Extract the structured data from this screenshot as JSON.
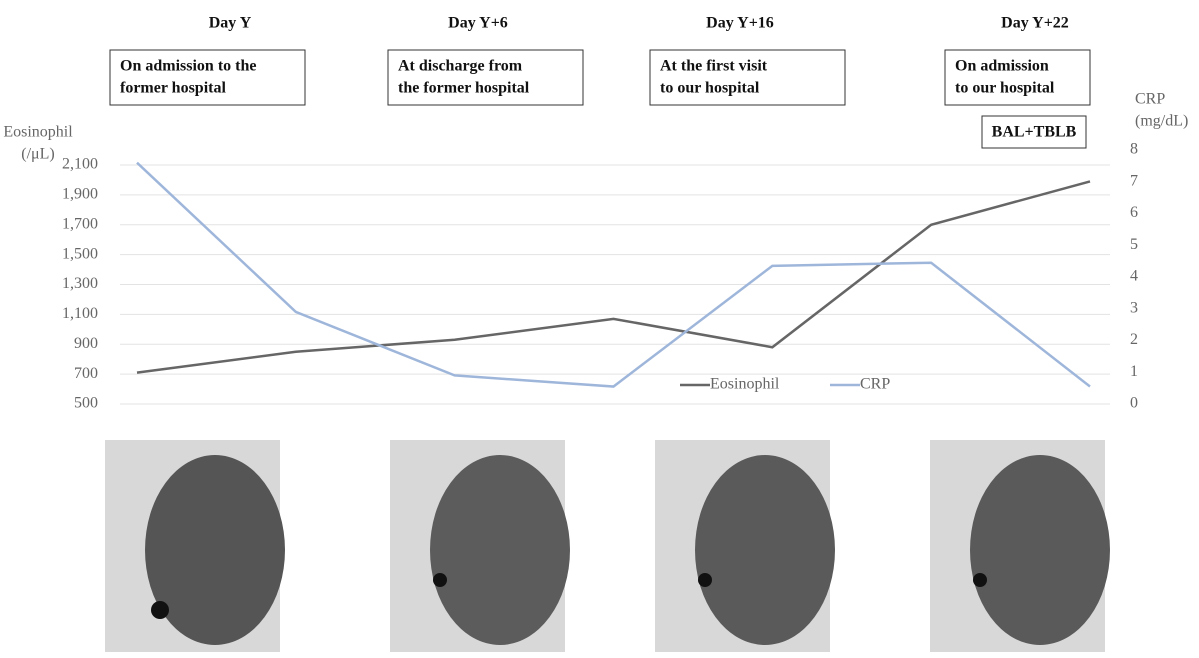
{
  "chart_data": {
    "type": "line",
    "ylabel": [
      "Eosinophil",
      "(/μL)"
    ],
    "y2label": [
      "CRP",
      "(mg/dL)"
    ],
    "categories": [
      null,
      null,
      null,
      null,
      null,
      null,
      null
    ],
    "series": [
      {
        "name": "Eosinophil",
        "color": "#666666",
        "values": [
          710,
          850,
          930,
          1070,
          880,
          1700,
          1990
        ]
      },
      {
        "name": "CRP",
        "color": "#9fb6db",
        "axis": "y2",
        "values": [
          7.6,
          2.9,
          0.9,
          0.55,
          4.35,
          4.45,
          0.55
        ]
      }
    ],
    "ylim": [
      500,
      2100
    ],
    "yticks": [
      500,
      700,
      900,
      {
        "value": 1100,
        "label": "1,100"
      },
      {
        "value": 1300,
        "label": "1,300"
      },
      {
        "value": 1500,
        "label": "1,500"
      },
      {
        "value": 1700,
        "label": "1,700"
      },
      {
        "value": 1900,
        "label": "1,900"
      },
      {
        "value": 2100,
        "label": "2,100"
      }
    ],
    "y2lim": [
      0,
      8
    ],
    "y2ticks": [
      0,
      1,
      2,
      3,
      4,
      5,
      6,
      7,
      8
    ],
    "grid": true,
    "legend": "bottom-right",
    "timeline": [
      {
        "day": "Day Y",
        "note": [
          "On admission to the",
          "former hospital"
        ]
      },
      {
        "day": "Day Y+6",
        "note": [
          "At discharge from",
          "the former hospital"
        ]
      },
      {
        "day": "Day Y+16",
        "note": [
          "At the first visit",
          "to our hospital"
        ]
      },
      {
        "day": "Day Y+22",
        "note": [
          "On admission",
          "to our hospital"
        ]
      }
    ],
    "procedure": "BAL+TBLB"
  }
}
